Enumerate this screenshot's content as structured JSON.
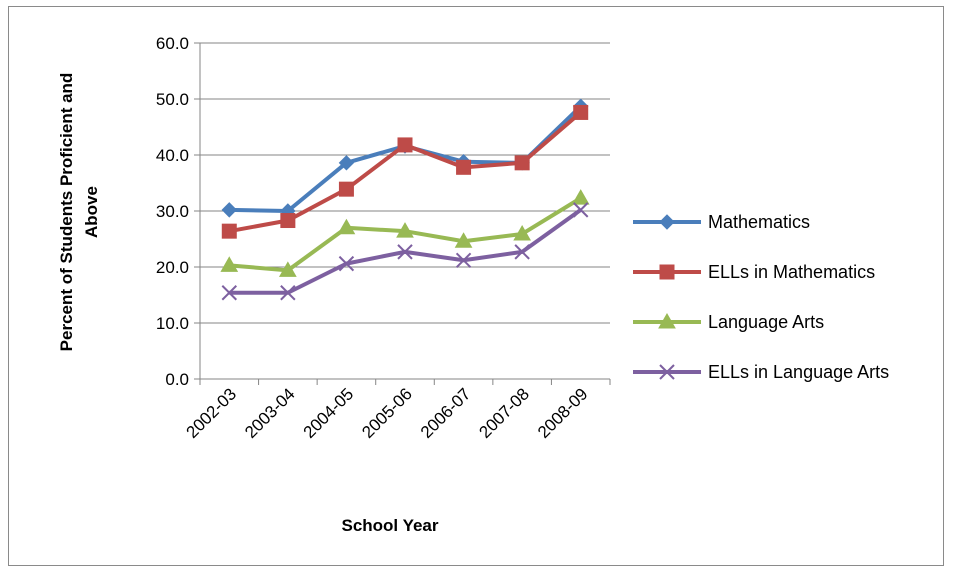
{
  "chart_data": {
    "type": "line",
    "categories": [
      "2002-03",
      "2003-04",
      "2004-05",
      "2005-06",
      "2006-07",
      "2007-08",
      "2008-09"
    ],
    "series": [
      {
        "name": "Mathematics",
        "values": [
          30.2,
          30.0,
          38.6,
          41.6,
          38.8,
          38.6,
          48.7
        ],
        "color": "#4a7ebb",
        "marker": "diamond"
      },
      {
        "name": "ELLs in Mathematics",
        "values": [
          26.4,
          28.3,
          33.9,
          41.8,
          37.8,
          38.6,
          47.6
        ],
        "color": "#be4b48",
        "marker": "square"
      },
      {
        "name": "Language Arts",
        "values": [
          20.3,
          19.4,
          27.0,
          26.4,
          24.6,
          25.9,
          32.3
        ],
        "color": "#98b954",
        "marker": "triangle"
      },
      {
        "name": "ELLs in Language Arts",
        "values": [
          15.4,
          15.4,
          20.6,
          22.7,
          21.2,
          22.7,
          30.2
        ],
        "color": "#7d60a0",
        "marker": "x"
      }
    ],
    "title": "",
    "xlabel": "School Year",
    "ylabel": "Percent of Students Proficient and Above",
    "ylabel_lines": [
      "Percent of Students Proficient and",
      "Above"
    ],
    "ylim": [
      0,
      60
    ],
    "yticks": [
      "0.0",
      "10.0",
      "20.0",
      "30.0",
      "40.0",
      "50.0",
      "60.0"
    ],
    "grid": true,
    "legend_position": "right"
  }
}
